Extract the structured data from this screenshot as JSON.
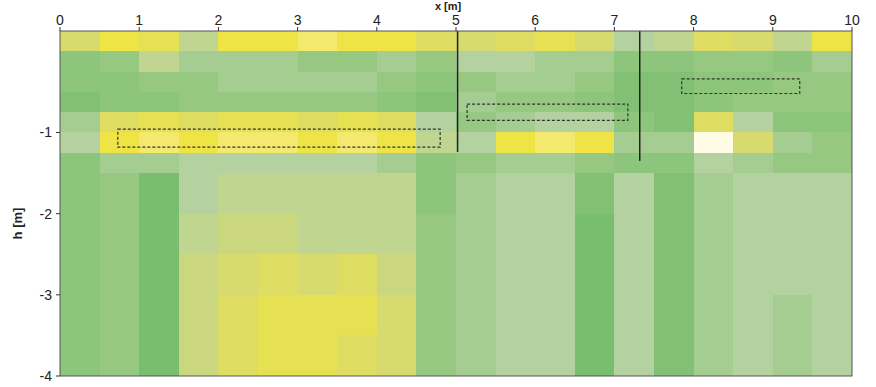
{
  "chart_data": {
    "type": "heatmap",
    "xlabel": "x [m]",
    "ylabel": "h [m]",
    "xlim": [
      0,
      10
    ],
    "ylim": [
      -4,
      0.25
    ],
    "xticks": [
      0,
      1,
      2,
      3,
      4,
      5,
      6,
      7,
      8,
      9,
      10
    ],
    "yticks": [
      -1,
      -2,
      -3,
      -4
    ],
    "x_edges": [
      0,
      0.5,
      1,
      1.5,
      2,
      2.5,
      3,
      3.5,
      4,
      4.5,
      5,
      5.5,
      6,
      6.5,
      7,
      7.5,
      8,
      8.5,
      9,
      9.5,
      10
    ],
    "y_edges": [
      0.25,
      0,
      -0.25,
      -0.5,
      -0.75,
      -1,
      -1.25,
      -1.5,
      -2,
      -2.5,
      -3,
      -3.5,
      -4
    ],
    "zlim": [
      0,
      1
    ],
    "cells": [
      [
        0.7,
        0.85,
        0.8,
        0.6,
        0.85,
        0.85,
        0.9,
        0.85,
        0.85,
        0.75,
        0.7,
        0.75,
        0.8,
        0.7,
        0.55,
        0.6,
        0.75,
        0.7,
        0.6,
        0.85
      ],
      [
        0.4,
        0.45,
        0.6,
        0.5,
        0.5,
        0.5,
        0.45,
        0.45,
        0.5,
        0.45,
        0.55,
        0.55,
        0.5,
        0.5,
        0.4,
        0.4,
        0.45,
        0.45,
        0.4,
        0.5
      ],
      [
        0.4,
        0.4,
        0.45,
        0.45,
        0.5,
        0.5,
        0.5,
        0.5,
        0.45,
        0.4,
        0.45,
        0.5,
        0.5,
        0.45,
        0.35,
        0.35,
        0.4,
        0.4,
        0.45,
        0.45
      ],
      [
        0.35,
        0.4,
        0.4,
        0.45,
        0.45,
        0.45,
        0.45,
        0.45,
        0.4,
        0.35,
        0.5,
        0.45,
        0.45,
        0.4,
        0.35,
        0.35,
        0.4,
        0.45,
        0.45,
        0.45
      ],
      [
        0.5,
        0.75,
        0.8,
        0.75,
        0.8,
        0.8,
        0.75,
        0.8,
        0.75,
        0.55,
        0.45,
        0.5,
        0.55,
        0.55,
        0.4,
        0.35,
        0.75,
        0.55,
        0.4,
        0.4
      ],
      [
        0.55,
        0.85,
        0.9,
        0.85,
        0.9,
        0.9,
        0.85,
        0.9,
        0.85,
        0.6,
        0.55,
        0.85,
        0.9,
        0.85,
        0.5,
        0.5,
        1.0,
        0.7,
        0.5,
        0.45
      ],
      [
        0.4,
        0.5,
        0.5,
        0.55,
        0.55,
        0.55,
        0.55,
        0.55,
        0.5,
        0.4,
        0.45,
        0.5,
        0.5,
        0.45,
        0.4,
        0.4,
        0.55,
        0.5,
        0.45,
        0.45
      ],
      [
        0.4,
        0.45,
        0.3,
        0.55,
        0.6,
        0.6,
        0.6,
        0.6,
        0.6,
        0.4,
        0.5,
        0.55,
        0.55,
        0.35,
        0.55,
        0.35,
        0.5,
        0.55,
        0.55,
        0.55
      ],
      [
        0.4,
        0.45,
        0.3,
        0.6,
        0.65,
        0.65,
        0.6,
        0.6,
        0.6,
        0.45,
        0.5,
        0.55,
        0.55,
        0.3,
        0.55,
        0.35,
        0.5,
        0.55,
        0.55,
        0.55
      ],
      [
        0.4,
        0.45,
        0.3,
        0.65,
        0.7,
        0.75,
        0.7,
        0.75,
        0.65,
        0.45,
        0.5,
        0.55,
        0.55,
        0.3,
        0.55,
        0.35,
        0.5,
        0.55,
        0.55,
        0.55
      ],
      [
        0.4,
        0.45,
        0.3,
        0.65,
        0.75,
        0.8,
        0.8,
        0.8,
        0.7,
        0.45,
        0.5,
        0.55,
        0.55,
        0.3,
        0.55,
        0.35,
        0.5,
        0.55,
        0.5,
        0.55
      ],
      [
        0.4,
        0.45,
        0.3,
        0.65,
        0.75,
        0.8,
        0.8,
        0.75,
        0.7,
        0.45,
        0.5,
        0.55,
        0.55,
        0.3,
        0.55,
        0.35,
        0.5,
        0.55,
        0.5,
        0.55
      ]
    ],
    "regions": [
      {
        "x": [
          0.73,
          4.8
        ],
        "h": [
          -0.96,
          -1.18
        ]
      },
      {
        "x": [
          5.14,
          7.17
        ],
        "h": [
          -0.65,
          -0.85
        ]
      },
      {
        "x": [
          7.85,
          9.34
        ],
        "h": [
          -0.34,
          -0.52
        ]
      }
    ],
    "dividers": [
      {
        "x": 5.02,
        "h": [
          0.25,
          -1.24
        ]
      },
      {
        "x": 7.32,
        "h": [
          0.25,
          -1.35
        ]
      }
    ]
  }
}
